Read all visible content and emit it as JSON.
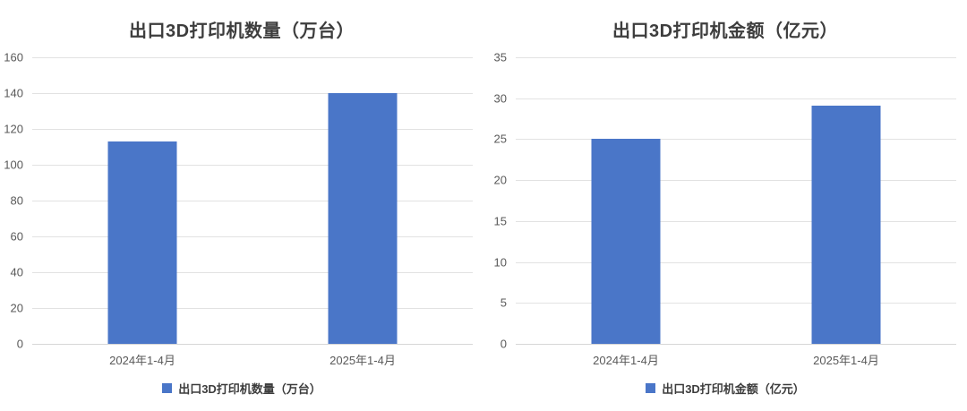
{
  "page": {
    "background": "#ffffff"
  },
  "chart_data": [
    {
      "type": "bar",
      "title": "出口3D打印机数量（万台）",
      "legend_label": "出口3D打印机数量（万台）",
      "legend_position": "bottom",
      "categories": [
        "2024年1-4月",
        "2025年1-4月"
      ],
      "values": [
        113,
        140
      ],
      "ylim": [
        0,
        160
      ],
      "yticks": [
        0,
        20,
        40,
        60,
        80,
        100,
        120,
        140,
        160
      ],
      "grid": "horizontal",
      "bar_color": "#4a76c8",
      "gridline_color": "#e2e2e2",
      "axis_text_color": "#595959",
      "title_color": "#3d3d3d"
    },
    {
      "type": "bar",
      "title": "出口3D打印机金额（亿元）",
      "legend_label": "出口3D打印机金额（亿元）",
      "legend_position": "bottom",
      "categories": [
        "2024年1-4月",
        "2025年1-4月"
      ],
      "values": [
        25.1,
        29.1
      ],
      "ylim": [
        0,
        35
      ],
      "yticks": [
        0,
        5,
        10,
        15,
        20,
        25,
        30,
        35
      ],
      "grid": "horizontal",
      "bar_color": "#4a76c8",
      "gridline_color": "#e2e2e2",
      "axis_text_color": "#595959",
      "title_color": "#3d3d3d"
    }
  ]
}
